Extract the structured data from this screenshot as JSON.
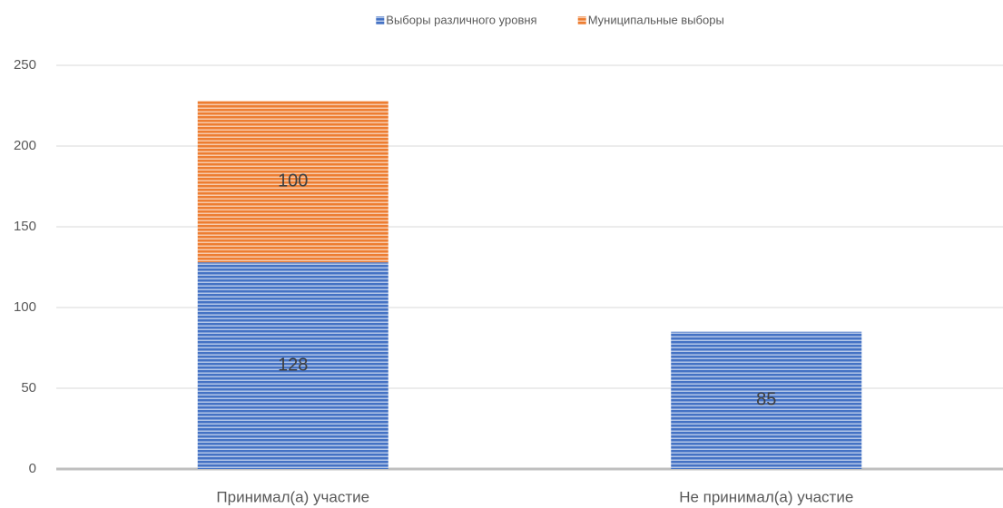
{
  "chart_data": {
    "type": "stacked_bar",
    "categories": [
      "Принимал(а) участие",
      "Не принимал(а) участие"
    ],
    "series": [
      {
        "name": "Выборы различного уровня",
        "color": "#4472c4",
        "values": [
          128,
          85
        ]
      },
      {
        "name": "Муниципальные выборы",
        "color": "#ed7d31",
        "values": [
          100,
          null
        ]
      }
    ],
    "ylim": [
      0,
      250
    ],
    "yticks": [
      0,
      50,
      100,
      150,
      200,
      250
    ],
    "grid": true,
    "legend": "top"
  }
}
